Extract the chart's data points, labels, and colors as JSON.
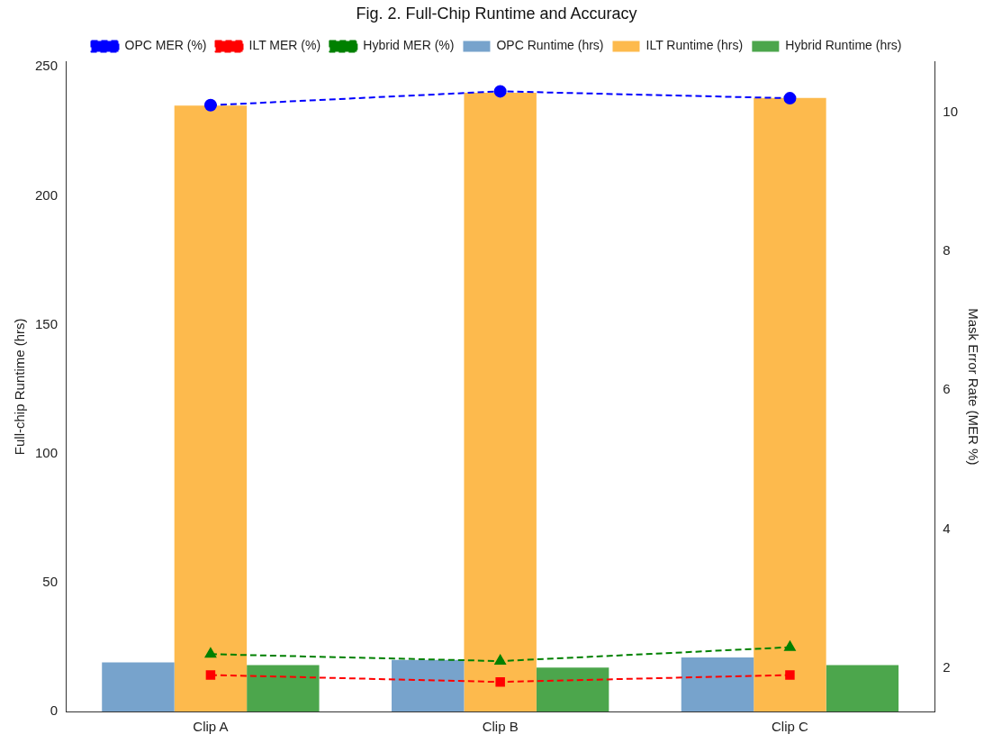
{
  "chart_data": {
    "type": "bar",
    "title": "Fig. 2. Full-Chip Runtime and Accuracy",
    "ylabel": "Full-chip Runtime (hrs)",
    "y2label": "Mask Error Rate (MER %)",
    "categories": [
      "Clip A",
      "Clip B",
      "Clip C"
    ],
    "series": [
      {
        "name": "OPC Runtime (hrs)",
        "color": "#77a3cc",
        "values": [
          19,
          20,
          21
        ]
      },
      {
        "name": "ILT Runtime (hrs)",
        "color": "#fdba4d",
        "values": [
          235,
          240,
          238
        ]
      },
      {
        "name": "Hybrid Runtime (hrs)",
        "color": "#4ca64c",
        "values": [
          18,
          17,
          18
        ]
      },
      {
        "name": "OPC MER (%)",
        "type": "line",
        "axis": "y2",
        "color": "#0000ff",
        "marker": "circle",
        "line_style": "dashed",
        "values": [
          10.1,
          10.3,
          10.2
        ]
      },
      {
        "name": "ILT MER (%)",
        "type": "line",
        "axis": "y2",
        "color": "#ff0000",
        "marker": "square",
        "line_style": "dashed",
        "values": [
          1.9,
          1.8,
          1.9
        ]
      },
      {
        "name": "Hybrid MER (%)",
        "type": "line",
        "axis": "y2",
        "color": "#008000",
        "marker": "triangle",
        "line_style": "dashed",
        "values": [
          2.2,
          2.1,
          2.3
        ]
      }
    ],
    "ylim": [
      0,
      252
    ],
    "yticks": [
      0,
      50,
      100,
      150,
      200,
      250
    ],
    "y2lim": [
      1.375,
      10.725
    ],
    "y2ticks": [
      2,
      4,
      6,
      8,
      10
    ],
    "grid": false,
    "legend": "top"
  }
}
